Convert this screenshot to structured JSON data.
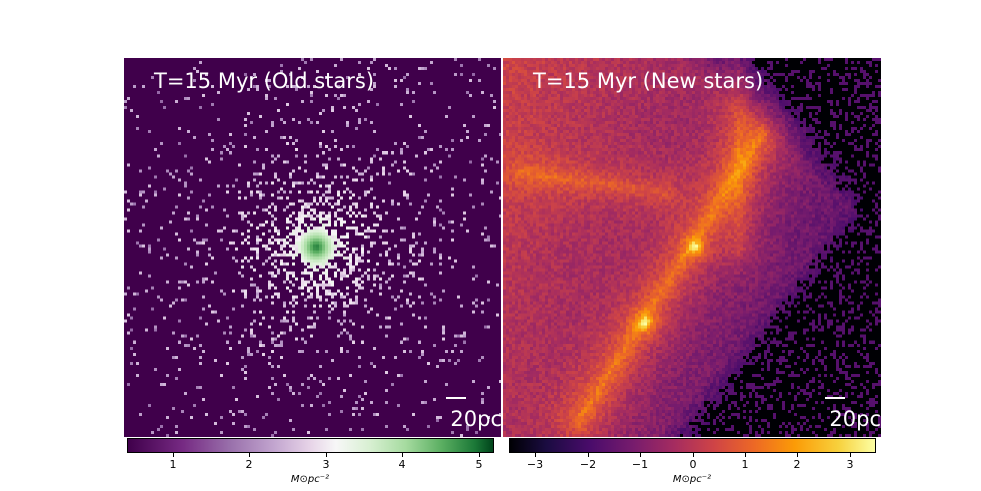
{
  "panels": [
    {
      "title": "T=15 Myr (Old stars)",
      "scale_label": "20pc",
      "colormap": "PRGn",
      "background_color": "#40004b",
      "center_color": "#1b7837"
    },
    {
      "title": "T=15 Myr (New stars)",
      "scale_label": "20pc",
      "colormap": "inferno",
      "background_color": "#000004",
      "peak_color": "#fcffa4"
    }
  ],
  "colorbars": [
    {
      "ticks": [
        "1",
        "2",
        "3",
        "4",
        "5"
      ],
      "tick_values": [
        1,
        2,
        3,
        4,
        5
      ],
      "range": [
        0.4,
        5.2
      ],
      "units": "M⊙pc⁻²"
    },
    {
      "ticks": [
        "−3",
        "−2",
        "−1",
        "0",
        "1",
        "2",
        "3"
      ],
      "tick_values": [
        -3,
        -2,
        -1,
        0,
        1,
        2,
        3
      ],
      "range": [
        -3.5,
        3.5
      ],
      "units": "M⊙pc⁻²"
    }
  ]
}
